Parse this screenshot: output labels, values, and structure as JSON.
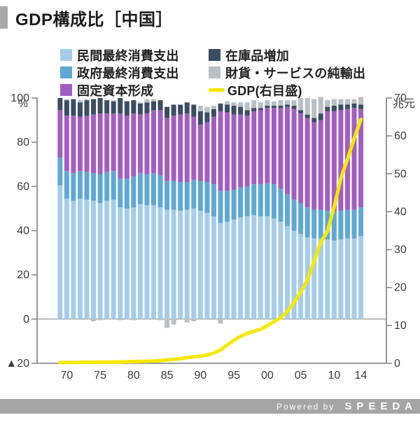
{
  "header": {
    "title": "GDP構成比［中国］"
  },
  "footer": {
    "powered_by": "Powered by",
    "brand": "SPEEDA"
  },
  "legend": {
    "items": [
      {
        "label": "民間最終消費支出",
        "color": "#a5cdea",
        "swatch": "square"
      },
      {
        "label": "政府最終消費支出",
        "color": "#5fa8d6",
        "swatch": "square"
      },
      {
        "label": "固定資本形成",
        "color": "#a35ec2",
        "swatch": "square"
      },
      {
        "label": "在庫品増加",
        "color": "#3b4d63",
        "swatch": "square"
      },
      {
        "label": "財貨・サービスの純輸出",
        "color": "#b9bfc3",
        "swatch": "square"
      },
      {
        "label": "GDP(右目盛)",
        "color": "#f7e800",
        "swatch": "line"
      }
    ]
  },
  "chart_data": {
    "type": "bar",
    "subtype": "stacked-bars-with-line",
    "title": "GDP構成比［中国］",
    "grid": false,
    "left_axis": {
      "label": "%",
      "min": -20,
      "max": 100,
      "ticks": [
        {
          "v": -20,
          "label": "▲20"
        },
        {
          "v": 0,
          "label": "0"
        },
        {
          "v": 20,
          "label": "20"
        },
        {
          "v": 40,
          "label": "40"
        },
        {
          "v": 60,
          "label": "60"
        },
        {
          "v": 80,
          "label": "80"
        },
        {
          "v": 100,
          "label": "100"
        }
      ]
    },
    "right_axis": {
      "label": "兆元",
      "min": 0,
      "max": 70,
      "ticks": [
        {
          "v": 0,
          "label": "0"
        },
        {
          "v": 10,
          "label": "10"
        },
        {
          "v": 20,
          "label": "20"
        },
        {
          "v": 30,
          "label": "30"
        },
        {
          "v": 40,
          "label": "40"
        },
        {
          "v": 50,
          "label": "50"
        },
        {
          "v": 60,
          "label": "60"
        },
        {
          "v": 70,
          "label": "70"
        }
      ]
    },
    "x_ticks": [
      {
        "year": 1970,
        "label": "70"
      },
      {
        "year": 1975,
        "label": "75"
      },
      {
        "year": 1980,
        "label": "80"
      },
      {
        "year": 1985,
        "label": "85"
      },
      {
        "year": 1990,
        "label": "90"
      },
      {
        "year": 1995,
        "label": "95"
      },
      {
        "year": 2000,
        "label": "00"
      },
      {
        "year": 2005,
        "label": "05"
      },
      {
        "year": 2010,
        "label": "10"
      },
      {
        "year": 2014,
        "label": "14"
      }
    ],
    "years": [
      1969,
      1970,
      1971,
      1972,
      1973,
      1974,
      1975,
      1976,
      1977,
      1978,
      1979,
      1980,
      1981,
      1982,
      1983,
      1984,
      1985,
      1986,
      1987,
      1988,
      1989,
      1990,
      1991,
      1992,
      1993,
      1994,
      1995,
      1996,
      1997,
      1998,
      1999,
      2000,
      2001,
      2002,
      2003,
      2004,
      2005,
      2006,
      2007,
      2008,
      2009,
      2010,
      2011,
      2012,
      2013,
      2014
    ],
    "series": [
      {
        "name": "民間最終消費支出",
        "color": "#a5cdea",
        "values": [
          60.5,
          54.5,
          53.5,
          54.5,
          54.0,
          53.5,
          52.5,
          53.5,
          54.0,
          50.5,
          50.0,
          50.5,
          52.0,
          51.5,
          51.5,
          50.5,
          49.5,
          49.5,
          49.0,
          49.5,
          50.0,
          49.0,
          48.0,
          46.5,
          43.5,
          44.0,
          45.0,
          46.0,
          46.5,
          47.0,
          46.5,
          46.5,
          45.5,
          44.0,
          42.0,
          40.0,
          38.5,
          37.0,
          36.5,
          36.5,
          36.0,
          35.5,
          36.0,
          36.5,
          36.5,
          37.5
        ]
      },
      {
        "name": "政府最終消費支出",
        "color": "#5fa8d6",
        "values": [
          12.5,
          12.5,
          12.5,
          12.5,
          12.5,
          12.5,
          13.0,
          13.0,
          13.0,
          13.0,
          13.5,
          14.0,
          14.0,
          14.0,
          14.5,
          14.5,
          13.0,
          13.0,
          13.0,
          12.5,
          13.0,
          13.5,
          14.0,
          14.5,
          14.5,
          14.0,
          13.5,
          13.5,
          13.5,
          14.0,
          14.5,
          15.0,
          15.5,
          15.0,
          14.5,
          14.0,
          14.0,
          13.5,
          13.0,
          13.0,
          13.0,
          13.0,
          13.0,
          13.0,
          13.0,
          13.0
        ]
      },
      {
        "name": "固定資本形成",
        "color": "#a35ec2",
        "values": [
          21.5,
          25.0,
          26.0,
          24.5,
          25.5,
          26.5,
          27.5,
          26.5,
          26.0,
          29.5,
          28.5,
          28.5,
          26.5,
          27.5,
          28.5,
          29.5,
          28.5,
          29.5,
          30.5,
          31.0,
          28.5,
          25.5,
          27.0,
          30.5,
          36.0,
          35.5,
          34.0,
          33.0,
          32.0,
          33.0,
          33.5,
          34.0,
          34.5,
          36.5,
          39.5,
          41.0,
          40.5,
          40.5,
          39.5,
          40.5,
          45.0,
          45.5,
          45.5,
          45.5,
          46.0,
          44.5
        ]
      },
      {
        "name": "在庫品増加",
        "color": "#3b4d63",
        "values": [
          5.5,
          7.0,
          7.5,
          6.5,
          7.0,
          7.0,
          7.0,
          6.0,
          5.5,
          7.0,
          6.5,
          6.0,
          5.0,
          5.0,
          4.0,
          4.5,
          5.0,
          5.0,
          4.5,
          5.0,
          5.5,
          6.0,
          4.5,
          3.5,
          3.5,
          3.5,
          4.0,
          3.5,
          2.5,
          1.5,
          1.0,
          1.0,
          1.0,
          1.0,
          1.0,
          1.5,
          1.5,
          1.5,
          2.0,
          3.0,
          2.0,
          2.5,
          2.5,
          2.0,
          2.0,
          2.0
        ]
      },
      {
        "name": "財貨・サービスの純輸出",
        "color": "#b9bfc3",
        "values": [
          0.0,
          0.5,
          0.0,
          1.0,
          0.5,
          -1.0,
          -0.5,
          0.0,
          0.5,
          -0.5,
          0.0,
          -0.5,
          0.5,
          1.5,
          1.0,
          -0.5,
          -4.0,
          -2.5,
          0.0,
          -1.5,
          -1.0,
          2.5,
          2.5,
          1.5,
          -2.0,
          1.5,
          1.5,
          2.0,
          3.5,
          3.5,
          2.5,
          2.5,
          2.0,
          2.5,
          2.0,
          2.5,
          5.5,
          7.5,
          8.5,
          7.5,
          3.0,
          3.0,
          2.5,
          2.5,
          2.0,
          3.5
        ]
      }
    ],
    "line": {
      "name": "GDP(右目盛)",
      "color": "#f7e800",
      "unit": "兆元",
      "values": [
        0.19,
        0.23,
        0.24,
        0.25,
        0.27,
        0.28,
        0.3,
        0.3,
        0.32,
        0.37,
        0.41,
        0.46,
        0.49,
        0.53,
        0.6,
        0.72,
        0.9,
        1.03,
        1.21,
        1.5,
        1.7,
        1.87,
        2.18,
        2.69,
        3.53,
        4.82,
        6.08,
        7.12,
        7.9,
        8.44,
        8.97,
        9.92,
        10.97,
        12.03,
        13.66,
        16.08,
        18.73,
        21.94,
        27.01,
        31.92,
        34.85,
        41.21,
        48.79,
        53.86,
        59.3,
        64.36
      ]
    }
  }
}
